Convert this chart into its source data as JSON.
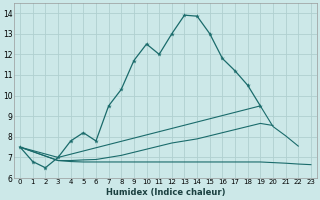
{
  "xlabel": "Humidex (Indice chaleur)",
  "bg_color": "#cce8e8",
  "grid_color": "#b0d0d0",
  "line_color": "#1a6b6b",
  "x_values": [
    0,
    1,
    2,
    3,
    4,
    5,
    6,
    7,
    8,
    9,
    10,
    11,
    12,
    13,
    14,
    15,
    16,
    17,
    18,
    19,
    20,
    21,
    22,
    23
  ],
  "line1_y": [
    7.5,
    6.8,
    6.5,
    7.0,
    7.8,
    8.2,
    7.8,
    9.5,
    10.3,
    11.7,
    12.5,
    12.0,
    13.0,
    13.9,
    13.85,
    13.0,
    11.8,
    11.2,
    10.5,
    9.5,
    null,
    null,
    null,
    null
  ],
  "line2_y": [
    7.5,
    null,
    null,
    7.0,
    null,
    null,
    null,
    null,
    null,
    null,
    null,
    null,
    null,
    null,
    null,
    null,
    null,
    null,
    null,
    9.5,
    8.5,
    8.05,
    7.55,
    null
  ],
  "line3_y": [
    7.5,
    null,
    null,
    6.85,
    6.8,
    6.78,
    6.78,
    6.78,
    6.78,
    6.78,
    6.78,
    6.78,
    6.78,
    6.78,
    6.78,
    6.78,
    6.78,
    6.78,
    6.78,
    6.78,
    6.75,
    6.72,
    6.68,
    6.65
  ],
  "line4_y": [
    7.5,
    null,
    null,
    6.85,
    6.85,
    6.88,
    6.9,
    7.0,
    7.1,
    7.25,
    7.4,
    7.55,
    7.7,
    7.8,
    7.9,
    8.05,
    8.2,
    8.35,
    8.5,
    8.65,
    8.55,
    null,
    null,
    null
  ],
  "ylim": [
    6.0,
    14.5
  ],
  "xlim": [
    -0.5,
    23.5
  ],
  "yticks": [
    6,
    7,
    8,
    9,
    10,
    11,
    12,
    13,
    14
  ],
  "xticks": [
    0,
    1,
    2,
    3,
    4,
    5,
    6,
    7,
    8,
    9,
    10,
    11,
    12,
    13,
    14,
    15,
    16,
    17,
    18,
    19,
    20,
    21,
    22,
    23
  ]
}
